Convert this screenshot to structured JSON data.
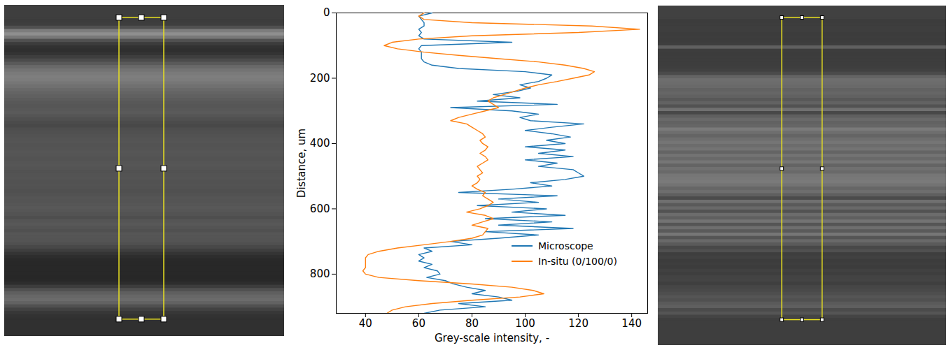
{
  "chart_data": {
    "type": "line",
    "x_label": "Grey-scale intensity, -",
    "y_label": "Distance, um",
    "xlim": [
      29,
      146
    ],
    "xticks": [
      40,
      60,
      80,
      100,
      120,
      140
    ],
    "ylim": [
      0,
      920
    ],
    "yticks": [
      0,
      200,
      400,
      600,
      800
    ],
    "legend": "lower right",
    "y": [
      0,
      10,
      20,
      30,
      40,
      50,
      60,
      70,
      80,
      90,
      100,
      110,
      120,
      130,
      140,
      150,
      160,
      170,
      180,
      190,
      200,
      210,
      220,
      230,
      240,
      250,
      260,
      270,
      280,
      290,
      300,
      310,
      320,
      330,
      340,
      350,
      360,
      370,
      380,
      390,
      400,
      410,
      420,
      430,
      440,
      450,
      460,
      470,
      480,
      490,
      500,
      510,
      520,
      530,
      540,
      550,
      560,
      570,
      580,
      590,
      600,
      610,
      620,
      630,
      640,
      650,
      660,
      670,
      680,
      690,
      700,
      710,
      720,
      730,
      740,
      750,
      760,
      770,
      780,
      790,
      800,
      810,
      820,
      830,
      840,
      850,
      860,
      870,
      880,
      890,
      900,
      910,
      920
    ],
    "series": [
      {
        "name": "Microscope",
        "color": "#1f77b4",
        "values": [
          65,
          60,
          61,
          62,
          62,
          60,
          61,
          60,
          62,
          95,
          61,
          60,
          61,
          61,
          61,
          62,
          65,
          75,
          100,
          110,
          108,
          105,
          98,
          102,
          97,
          88,
          98,
          82,
          112,
          72,
          95,
          105,
          98,
          102,
          122,
          110,
          100,
          110,
          117,
          108,
          115,
          100,
          115,
          105,
          118,
          100,
          112,
          105,
          118,
          120,
          122,
          115,
          102,
          110,
          95,
          75,
          112,
          90,
          105,
          82,
          108,
          95,
          115,
          85,
          110,
          90,
          118,
          85,
          105,
          90,
          72,
          80,
          62,
          65,
          60,
          62,
          60,
          65,
          62,
          67,
          68,
          63,
          70,
          73,
          78,
          85,
          80,
          90,
          95,
          75,
          85,
          68,
          62
        ]
      },
      {
        "name": "In-situ (0/100/0)",
        "color": "#ff7f0e",
        "values": [
          62,
          60,
          62,
          80,
          125,
          143,
          120,
          80,
          60,
          50,
          47,
          52,
          62,
          75,
          90,
          105,
          115,
          122,
          126,
          124,
          118,
          112,
          105,
          100,
          96,
          92,
          88,
          86,
          88,
          90,
          85,
          80,
          75,
          72,
          78,
          80,
          82,
          84,
          85,
          83,
          84,
          86,
          85,
          83,
          85,
          86,
          84,
          82,
          83,
          84,
          82,
          83,
          82,
          80,
          82,
          85,
          84,
          86,
          88,
          86,
          83,
          78,
          85,
          88,
          84,
          80,
          86,
          85,
          84,
          80,
          72,
          62,
          52,
          45,
          41,
          40,
          40,
          40,
          40,
          39,
          40,
          45,
          60,
          80,
          95,
          103,
          107,
          98,
          80,
          65,
          55,
          50,
          48
        ]
      }
    ]
  }
}
